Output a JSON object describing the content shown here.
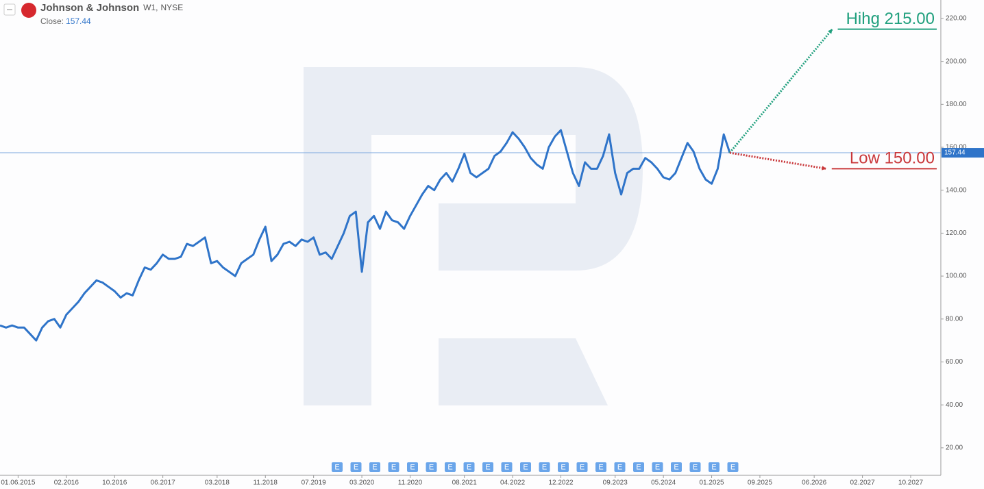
{
  "chart_data": {
    "type": "line",
    "title": "Johnson & Johnson",
    "interval": "W1,",
    "exchange": "NYSE",
    "close_label": "Close:",
    "close": 157.44,
    "earnings_label": "E",
    "x": [
      "03.2015",
      "04.2015",
      "05.2015",
      "06.2015",
      "07.2015",
      "08.2015",
      "09.2015",
      "10.2015",
      "11.2015",
      "12.2015",
      "01.2016",
      "02.2016",
      "03.2016",
      "04.2016",
      "05.2016",
      "06.2016",
      "07.2016",
      "08.2016",
      "09.2016",
      "10.2016",
      "11.2016",
      "12.2016",
      "01.2017",
      "02.2017",
      "03.2017",
      "04.2017",
      "05.2017",
      "06.2017",
      "07.2017",
      "08.2017",
      "09.2017",
      "10.2017",
      "11.2017",
      "12.2017",
      "01.2018",
      "02.2018",
      "03.2018",
      "04.2018",
      "05.2018",
      "06.2018",
      "07.2018",
      "08.2018",
      "09.2018",
      "10.2018",
      "11.2018",
      "12.2018",
      "01.2019",
      "02.2019",
      "03.2019",
      "04.2019",
      "05.2019",
      "06.2019",
      "07.2019",
      "08.2019",
      "09.2019",
      "10.2019",
      "11.2019",
      "12.2019",
      "01.2020",
      "02.2020",
      "03.2020",
      "04.2020",
      "05.2020",
      "06.2020",
      "07.2020",
      "08.2020",
      "09.2020",
      "10.2020",
      "11.2020",
      "12.2020",
      "01.2021",
      "02.2021",
      "03.2021",
      "04.2021",
      "05.2021",
      "06.2021",
      "07.2021",
      "08.2021",
      "09.2021",
      "10.2021",
      "11.2021",
      "12.2021",
      "01.2022",
      "02.2022",
      "03.2022",
      "04.2022",
      "05.2022",
      "06.2022",
      "07.2022",
      "08.2022",
      "09.2022",
      "10.2022",
      "11.2022",
      "12.2022",
      "01.2023",
      "02.2023",
      "03.2023",
      "04.2023",
      "05.2023",
      "06.2023",
      "07.2023",
      "08.2023",
      "09.2023",
      "10.2023",
      "11.2023",
      "12.2023",
      "01.2024",
      "02.2024",
      "03.2024",
      "04.2024",
      "05.2024",
      "06.2024",
      "07.2024",
      "08.2024",
      "09.2024",
      "10.2024",
      "11.2024",
      "12.2024",
      "01.2025",
      "02.2025",
      "03.2025",
      "04.2025"
    ],
    "series": [
      {
        "color": "#2f74c9",
        "values": [
          77,
          76,
          77,
          76,
          76,
          73,
          70,
          76,
          79,
          80,
          76,
          82,
          85,
          88,
          92,
          95,
          98,
          97,
          95,
          93,
          90,
          92,
          91,
          98,
          104,
          103,
          106,
          110,
          108,
          108,
          109,
          115,
          114,
          116,
          118,
          106,
          107,
          104,
          102,
          100,
          106,
          108,
          110,
          117,
          123,
          107,
          110,
          115,
          116,
          114,
          117,
          116,
          118,
          110,
          111,
          108,
          114,
          120,
          128,
          130,
          102,
          125,
          128,
          122,
          130,
          126,
          125,
          122,
          128,
          133,
          138,
          142,
          140,
          145,
          148,
          144,
          150,
          157,
          148,
          146,
          148,
          150,
          156,
          158,
          162,
          167,
          164,
          160,
          155,
          152,
          150,
          160,
          165,
          168,
          158,
          148,
          142,
          153,
          150,
          150,
          156,
          166,
          148,
          138,
          148,
          150,
          150,
          155,
          153,
          150,
          146,
          145,
          148,
          155,
          162,
          158,
          150,
          145,
          143,
          150,
          166,
          157.44
        ]
      }
    ],
    "xlim": [
      "03.2015",
      "03.2028"
    ],
    "xticks": [
      "01.06.2015",
      "02.2016",
      "10.2016",
      "06.2017",
      "03.2018",
      "11.2018",
      "07.2019",
      "03.2020",
      "11.2020",
      "08.2021",
      "04.2022",
      "12.2022",
      "09.2023",
      "05.2024",
      "01.2025",
      "09.2025",
      "06.2026",
      "02.2027",
      "10.2027"
    ],
    "ylim": [
      7.2,
      228.6
    ],
    "yticks": [
      {
        "value": 20,
        "label": "20.00"
      },
      {
        "value": 40,
        "label": "40.00"
      },
      {
        "value": 60,
        "label": "60.00"
      },
      {
        "value": 80,
        "label": "80.00"
      },
      {
        "value": 100,
        "label": "100.00"
      },
      {
        "value": 120,
        "label": "120.00"
      },
      {
        "value": 140,
        "label": "140.00"
      },
      {
        "value": 160,
        "label": "160.00"
      },
      {
        "value": 180,
        "label": "180.00"
      },
      {
        "value": 200,
        "label": "200.00"
      },
      {
        "value": 220,
        "label": "220.00"
      }
    ],
    "annotations": [
      {
        "text": "Hihg 215.00",
        "value": 215,
        "x": "09.2026",
        "color": "#21a07e"
      },
      {
        "text": "Low 150.00",
        "value": 150,
        "x": "08.2026",
        "color": "#c9383b"
      }
    ]
  }
}
